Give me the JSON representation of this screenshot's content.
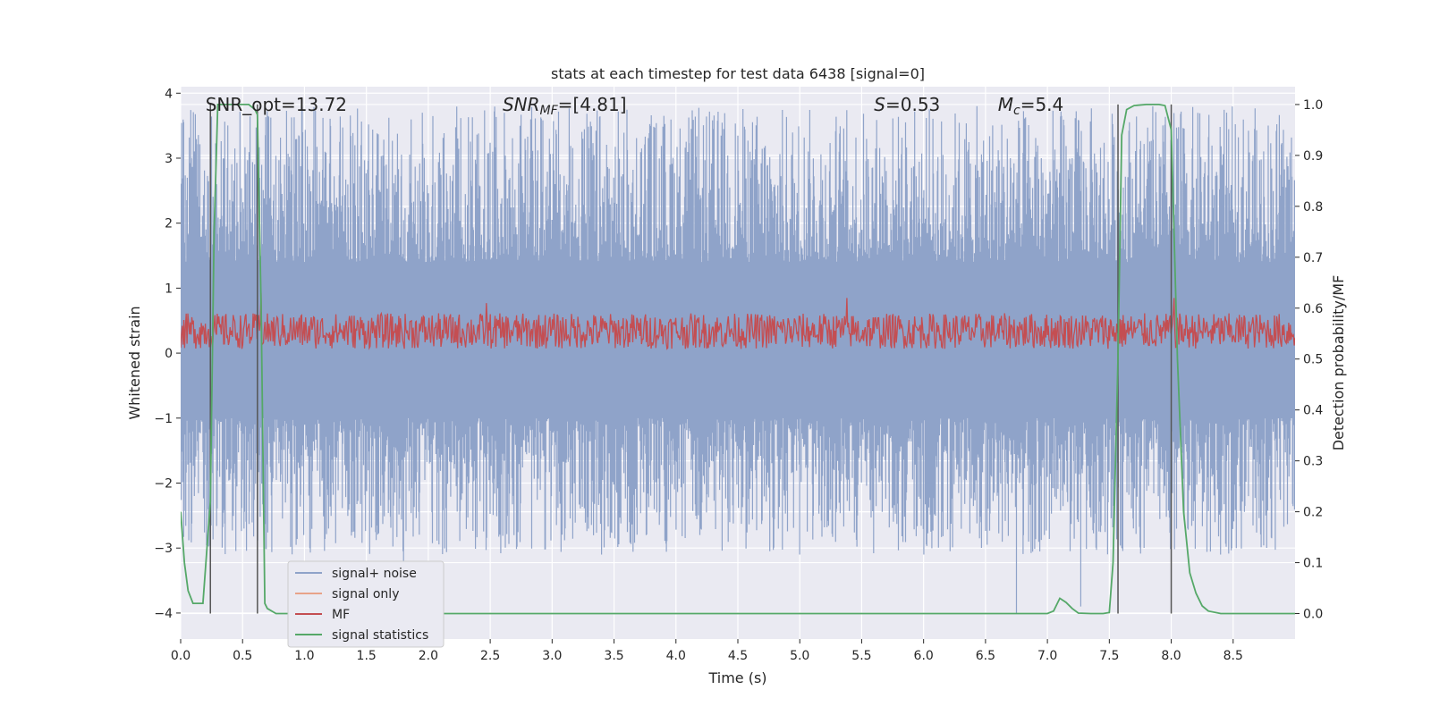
{
  "chart_data": {
    "type": "line",
    "title": "stats at each timestep for test data 6438 [signal=0]",
    "xlabel": "Time (s)",
    "ylabel": "Whitened strain",
    "ylabel_right": "Detection probability/MF",
    "xlim": [
      0.0,
      9.0
    ],
    "ylim": [
      -4.4,
      4.1
    ],
    "ylim_right": [
      -0.05,
      1.035
    ],
    "x_ticks": [
      0.0,
      0.5,
      1.0,
      1.5,
      2.0,
      2.5,
      3.0,
      3.5,
      4.0,
      4.5,
      5.0,
      5.5,
      6.0,
      6.5,
      7.0,
      7.5,
      8.0,
      8.5
    ],
    "x_tick_labels": [
      "0.0",
      "0.5",
      "1.0",
      "1.5",
      "2.0",
      "2.5",
      "3.0",
      "3.5",
      "4.0",
      "4.5",
      "5.0",
      "5.5",
      "6.0",
      "6.5",
      "7.0",
      "7.5",
      "8.0",
      "8.5"
    ],
    "y_ticks": [
      -4,
      -3,
      -2,
      -1,
      0,
      1,
      2,
      3,
      4
    ],
    "y_tick_labels": [
      "−4",
      "−3",
      "−2",
      "−1",
      "0",
      "1",
      "2",
      "3",
      "4"
    ],
    "y_ticks_right": [
      0.0,
      0.1,
      0.2,
      0.3,
      0.4,
      0.5,
      0.6,
      0.7,
      0.8,
      0.9,
      1.0
    ],
    "y_tick_labels_right": [
      "0.0",
      "0.1",
      "0.2",
      "0.3",
      "0.4",
      "0.5",
      "0.6",
      "0.7",
      "0.8",
      "0.9",
      "1.0"
    ],
    "grid": true,
    "legend_position": "lower-left",
    "annotations": {
      "snr_opt": "SNR_opt=13.72",
      "snr_mf_prefix": "SNR",
      "snr_mf_sub": "MF",
      "snr_mf_value": "=[4.81]",
      "s_symbol": "S",
      "s_value": "=0.53",
      "mc_symbol": "M",
      "mc_sub": "c",
      "mc_value": "=5.4"
    },
    "vertical_markers_x": [
      0.24,
      0.62,
      7.57,
      8.0
    ],
    "vertical_markers_range_right": [
      0.0,
      1.0
    ],
    "series": [
      {
        "name": "signal+ noise",
        "color": "#8fa3c9",
        "description_level": "noise band",
        "envelope": {
          "core_low": -1.0,
          "core_high": 1.4,
          "peak_high": 3.7,
          "peak_low": -4.0
        },
        "notable_peaks": [
          [
            0.1,
            2.2
          ],
          [
            0.29,
            2.6
          ],
          [
            0.84,
            2.9
          ],
          [
            1.16,
            2.7
          ],
          [
            1.66,
            2.9
          ],
          [
            1.95,
            3.7
          ],
          [
            2.52,
            3.1
          ],
          [
            2.78,
            3.3
          ],
          [
            2.98,
            3.3
          ],
          [
            3.25,
            3.3
          ],
          [
            3.95,
            2.9
          ],
          [
            4.6,
            3.1
          ],
          [
            5.24,
            2.8
          ],
          [
            6.28,
            2.8
          ],
          [
            6.7,
            3.0
          ],
          [
            7.2,
            3.0
          ],
          [
            8.05,
            3.3
          ]
        ],
        "notable_troughs": [
          [
            1.8,
            -3.2
          ],
          [
            3.4,
            -3.1
          ],
          [
            5.0,
            -3.1
          ],
          [
            6.0,
            -3.1
          ],
          [
            6.75,
            -4.0
          ],
          [
            7.27,
            -3.9
          ],
          [
            8.4,
            -3.1
          ]
        ]
      },
      {
        "name": "signal only",
        "color": "#e8a389",
        "values": []
      },
      {
        "name": "MF",
        "color": "#c44e52",
        "axis": "right",
        "band": [
          0.52,
          0.59
        ],
        "notable_peaks": [
          [
            0.65,
            0.63
          ],
          [
            2.47,
            0.61
          ],
          [
            5.38,
            0.62
          ],
          [
            8.02,
            0.62
          ]
        ]
      },
      {
        "name": "signal statistics",
        "color": "#55a868",
        "axis": "right",
        "x": [
          0.0,
          0.03,
          0.06,
          0.1,
          0.18,
          0.24,
          0.27,
          0.3,
          0.35,
          0.45,
          0.55,
          0.6,
          0.62,
          0.65,
          0.68,
          0.7,
          0.77,
          0.85,
          1.0,
          2.0,
          3.0,
          4.0,
          5.0,
          6.0,
          6.8,
          7.0,
          7.05,
          7.1,
          7.15,
          7.2,
          7.25,
          7.35,
          7.45,
          7.5,
          7.53,
          7.57,
          7.6,
          7.64,
          7.7,
          7.8,
          7.9,
          7.95,
          8.0,
          8.05,
          8.1,
          8.15,
          8.2,
          8.25,
          8.3,
          8.4,
          8.6,
          9.0
        ],
        "values": [
          0.2,
          0.1,
          0.045,
          0.02,
          0.02,
          0.22,
          0.75,
          1.0,
          1.0,
          1.0,
          1.0,
          0.99,
          0.98,
          0.6,
          0.02,
          0.01,
          0.0,
          0.0,
          0.0,
          0.0,
          0.0,
          0.0,
          0.0,
          0.0,
          0.0,
          0.0,
          0.005,
          0.03,
          0.022,
          0.01,
          0.001,
          0.0,
          0.0,
          0.002,
          0.1,
          0.5,
          0.94,
          0.99,
          0.998,
          1.0,
          1.0,
          0.998,
          0.95,
          0.5,
          0.2,
          0.08,
          0.04,
          0.015,
          0.005,
          0.0,
          0.0,
          0.0
        ]
      }
    ]
  }
}
